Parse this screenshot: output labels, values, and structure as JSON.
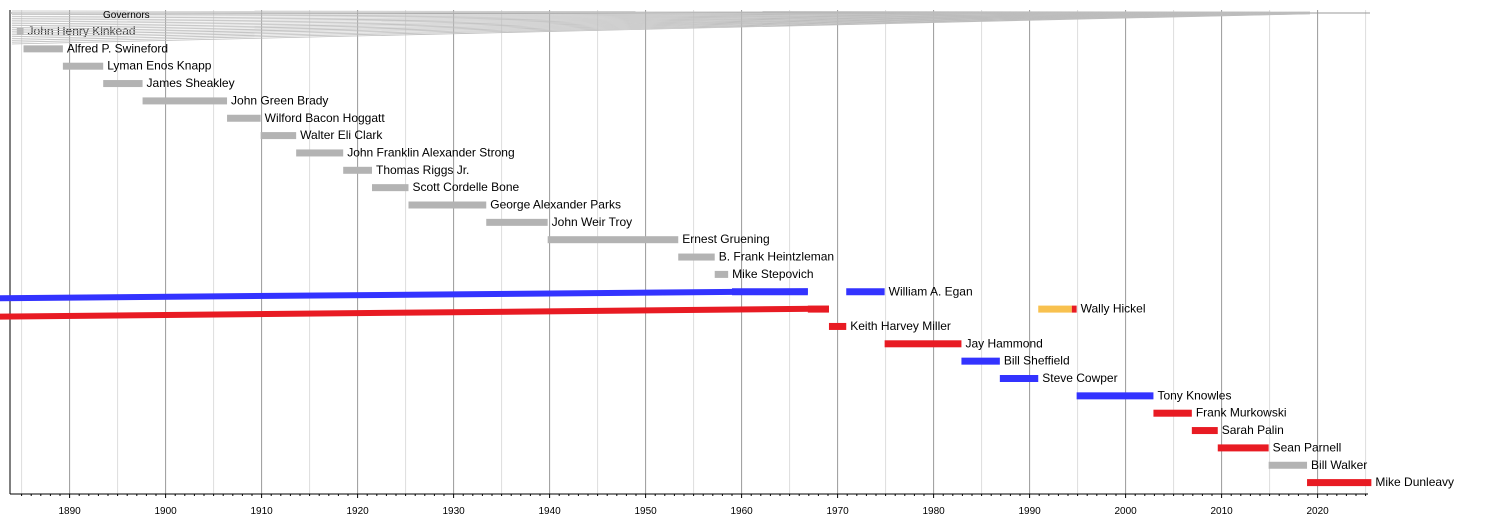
{
  "chart_data": {
    "type": "bar",
    "legend_title": "Governors",
    "xlim": [
      1884,
      2027
    ],
    "x_ticks": [
      1890,
      1900,
      1910,
      1920,
      1930,
      1940,
      1950,
      1960,
      1970,
      1980,
      1990,
      2000,
      2010,
      2020
    ],
    "grid": true,
    "colors": {
      "none": "#b3b3b3",
      "democratic": "#3333ff",
      "republican": "#e81b23",
      "independent": "#f8c14f"
    },
    "bars": [
      {
        "name": "John Henry Kinkead",
        "start": 1884.5,
        "end": 1885.2,
        "party": "none"
      },
      {
        "name": "Alfred P. Swineford",
        "start": 1885.2,
        "end": 1889.3,
        "party": "none"
      },
      {
        "name": "Lyman Enos Knapp",
        "start": 1889.3,
        "end": 1893.5,
        "party": "none"
      },
      {
        "name": "James Sheakley",
        "start": 1893.5,
        "end": 1897.6,
        "party": "none"
      },
      {
        "name": "John Green Brady",
        "start": 1897.6,
        "end": 1906.4,
        "party": "none"
      },
      {
        "name": "Wilford Bacon Hoggatt",
        "start": 1906.4,
        "end": 1909.9,
        "party": "none"
      },
      {
        "name": "Walter Eli Clark",
        "start": 1909.9,
        "end": 1913.6,
        "party": "none"
      },
      {
        "name": "John Franklin Alexander Strong",
        "start": 1913.6,
        "end": 1918.5,
        "party": "none"
      },
      {
        "name": "Thomas Riggs Jr.",
        "start": 1918.5,
        "end": 1921.5,
        "party": "none"
      },
      {
        "name": "Scott Cordelle Bone",
        "start": 1921.5,
        "end": 1925.3,
        "party": "none"
      },
      {
        "name": "George Alexander Parks",
        "start": 1925.3,
        "end": 1933.4,
        "party": "none"
      },
      {
        "name": "John Weir Troy",
        "start": 1933.4,
        "end": 1939.8,
        "party": "none"
      },
      {
        "name": "Ernest Gruening",
        "start": 1939.8,
        "end": 1953.4,
        "party": "none"
      },
      {
        "name": "B. Frank Heintzleman",
        "start": 1953.4,
        "end": 1957.2,
        "party": "none"
      },
      {
        "name": "Mike Stepovich",
        "start": 1957.2,
        "end": 1958.6,
        "party": "none"
      },
      {
        "name": "William A. Egan",
        "start": 1959.0,
        "end": 1966.9,
        "party": "democratic",
        "label_after": true
      },
      {
        "name": "William A. Egan",
        "start": 1970.9,
        "end": 1974.9,
        "party": "democratic"
      },
      {
        "name": "Wally Hickel",
        "start": 1966.9,
        "end": 1969.1,
        "party": "republican",
        "label_after": true
      },
      {
        "name": "Wally Hickel",
        "start": 1990.9,
        "end": 1994.4,
        "party": "independent"
      },
      {
        "name": "Wally Hickel",
        "start": 1994.4,
        "end": 1994.9,
        "party": "republican"
      },
      {
        "name": "Keith Harvey Miller",
        "start": 1969.1,
        "end": 1970.9,
        "party": "republican"
      },
      {
        "name": "Jay Hammond",
        "start": 1974.9,
        "end": 1982.9,
        "party": "republican"
      },
      {
        "name": "Bill Sheffield",
        "start": 1982.9,
        "end": 1986.9,
        "party": "democratic"
      },
      {
        "name": "Steve Cowper",
        "start": 1986.9,
        "end": 1990.9,
        "party": "democratic"
      },
      {
        "name": "Tony Knowles",
        "start": 1994.9,
        "end": 2002.9,
        "party": "democratic"
      },
      {
        "name": "Frank Murkowski",
        "start": 2002.9,
        "end": 2006.9,
        "party": "republican"
      },
      {
        "name": "Sarah Palin",
        "start": 2006.9,
        "end": 2009.6,
        "party": "republican"
      },
      {
        "name": "Sean Parnell",
        "start": 2009.6,
        "end": 2014.9,
        "party": "republican"
      },
      {
        "name": "Bill Walker",
        "start": 2014.9,
        "end": 2018.9,
        "party": "none"
      },
      {
        "name": "Mike Dunleavy",
        "start": 2018.9,
        "end": 2025.6,
        "party": "republican"
      }
    ]
  }
}
